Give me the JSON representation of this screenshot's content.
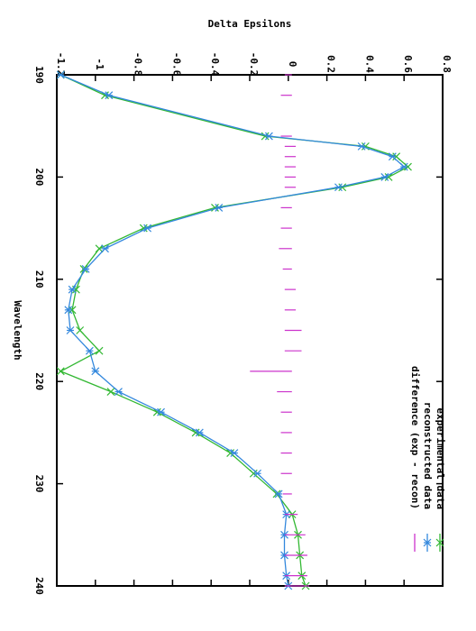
{
  "chart_data": {
    "type": "line",
    "title": "",
    "xlabel": "Wavelength",
    "ylabel": "Delta Epsilons",
    "xlim": [
      190,
      240
    ],
    "ylim": [
      -1.2,
      0.8
    ],
    "x_ticks": [
      190,
      200,
      210,
      220,
      230,
      240
    ],
    "y_ticks": [
      -1.2,
      -1,
      -0.8,
      -0.6,
      -0.4,
      -0.2,
      0,
      0.2,
      0.4,
      0.6,
      0.8
    ],
    "y_tick_labels": [
      "-1.2",
      "-1",
      "-0.8",
      "-0.6",
      "-0.4",
      "-0.2",
      "0",
      "0.2",
      "0.4",
      "0.6",
      "0.8"
    ],
    "x_tick_labels": [
      "190",
      "200",
      "210",
      "220",
      "230",
      "240"
    ],
    "grid": false,
    "legend_position": "bottom-right",
    "series": [
      {
        "name": "experimental data",
        "color": "#33b833",
        "marker": "x",
        "x": [
          190,
          192,
          196,
          197,
          198,
          199,
          200,
          201,
          203,
          205,
          207,
          209,
          211,
          213,
          215,
          217,
          219,
          221,
          223,
          225,
          227,
          229,
          231,
          233,
          235,
          237,
          239,
          240
        ],
        "y": [
          -1.18,
          -0.95,
          -0.12,
          0.4,
          0.56,
          0.62,
          0.52,
          0.28,
          -0.38,
          -0.75,
          -0.98,
          -1.06,
          -1.1,
          -1.12,
          -1.08,
          -0.98,
          -1.18,
          -0.92,
          -0.68,
          -0.48,
          -0.3,
          -0.18,
          -0.06,
          0.02,
          0.05,
          0.06,
          0.07,
          0.09
        ]
      },
      {
        "name": "reconstructed data",
        "color": "#3388dd",
        "marker": "*",
        "x": [
          190,
          192,
          196,
          197,
          198,
          199,
          200,
          201,
          203,
          205,
          207,
          209,
          211,
          213,
          215,
          217,
          219,
          221,
          223,
          225,
          227,
          229,
          231,
          233,
          235,
          237,
          239,
          240
        ],
        "y": [
          -1.18,
          -0.93,
          -0.1,
          0.38,
          0.54,
          0.6,
          0.5,
          0.26,
          -0.36,
          -0.73,
          -0.95,
          -1.05,
          -1.12,
          -1.14,
          -1.13,
          -1.03,
          -1.0,
          -0.88,
          -0.66,
          -0.46,
          -0.28,
          -0.16,
          -0.05,
          -0.01,
          -0.02,
          -0.02,
          -0.01,
          0.0
        ]
      },
      {
        "name": "difference (exp - recon)",
        "color": "#cc33cc",
        "marker": "|",
        "x": [
          190,
          192,
          196,
          197,
          198,
          199,
          200,
          201,
          203,
          205,
          207,
          209,
          211,
          213,
          215,
          217,
          219,
          221,
          223,
          225,
          227,
          229,
          231,
          233,
          235,
          237,
          239,
          240
        ],
        "y": [
          0.0,
          -0.02,
          -0.02,
          0.02,
          0.02,
          0.02,
          0.02,
          0.02,
          -0.02,
          -0.02,
          -0.03,
          -0.01,
          0.02,
          0.02,
          0.05,
          0.05,
          -0.18,
          -0.04,
          -0.02,
          -0.02,
          -0.02,
          -0.02,
          -0.01,
          0.03,
          0.07,
          0.08,
          0.08,
          0.09
        ]
      }
    ]
  }
}
